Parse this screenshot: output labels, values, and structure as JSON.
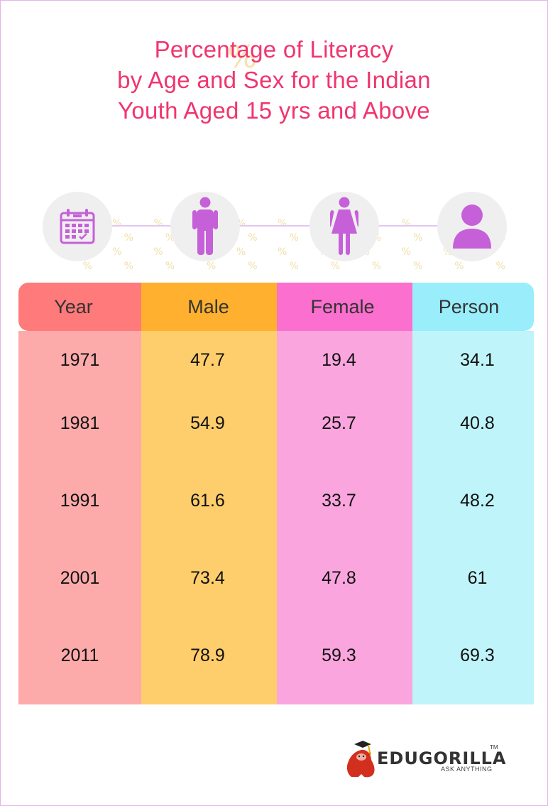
{
  "title_lines": [
    "Percentage of Literacy",
    "by Age and Sex for the Indian",
    "Youth Aged 15 yrs and Above"
  ],
  "icons": [
    "calendar-icon",
    "male-icon",
    "female-icon",
    "person-icon"
  ],
  "colors": {
    "title": "#f0356f",
    "icon": "#c560d8",
    "year_head": "#ff7a7a",
    "year_body": "#fdaaaa",
    "male_head": "#ffb02e",
    "male_body": "#fecd6c",
    "female_head": "#fb6fce",
    "female_body": "#fba5df",
    "person_head": "#9aedfa",
    "person_body": "#bff4fb"
  },
  "chart_data": {
    "type": "table",
    "title": "Percentage of Literacy by Age and Sex for the Indian Youth Aged 15 yrs and Above",
    "columns": [
      "Year",
      "Male",
      "Female",
      "Person"
    ],
    "rows": [
      [
        "1971",
        "47.7",
        "19.4",
        "34.1"
      ],
      [
        "1981",
        "54.9",
        "25.7",
        "40.8"
      ],
      [
        "1991",
        "61.6",
        "33.7",
        "48.2"
      ],
      [
        "2001",
        "73.4",
        "47.8",
        "61"
      ],
      [
        "2011",
        "78.9",
        "59.3",
        "69.3"
      ]
    ]
  },
  "logo": {
    "name": "EDUGORILLA",
    "tm": "TM",
    "tagline": "ASK ANYTHING"
  }
}
